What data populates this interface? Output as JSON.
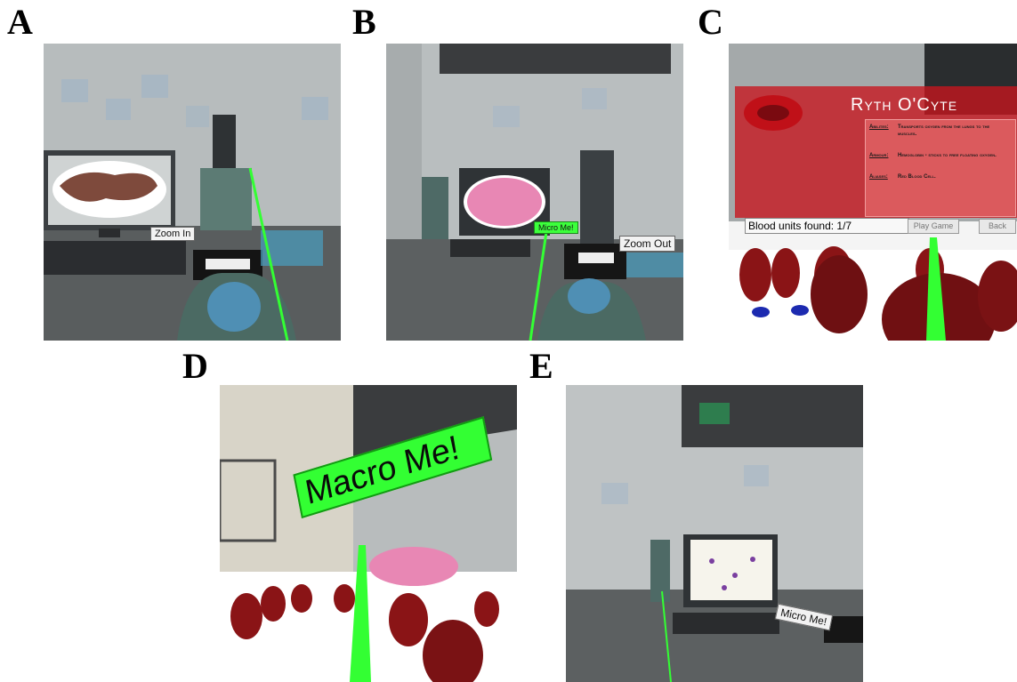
{
  "panels": {
    "a": {
      "letter": "A",
      "label": "Zoom In"
    },
    "b": {
      "letter": "B",
      "label_micro": "Micro Me!",
      "label_zoom": "Zoom Out"
    },
    "c": {
      "letter": "C",
      "title": "Ryth O'Cyte",
      "rows": [
        {
          "key": "Abilites:",
          "value": "Transports oxygen from the lungs to the muscles."
        },
        {
          "key": "Armour:",
          "value": "Hemoglobin - sticks to free floating oxygen."
        },
        {
          "key": "Aliases:",
          "value": "Red Blood Cell."
        }
      ],
      "counter": "Blood units found: 1/7",
      "play_button": "Play Game",
      "back_button": "Back"
    },
    "d": {
      "letter": "D",
      "sign": "Macro Me!"
    },
    "e": {
      "letter": "E",
      "label": "Micro Me!"
    }
  },
  "colors": {
    "laser": "#33ff33",
    "card": "#c8141e",
    "rbc": "#8a1416"
  }
}
